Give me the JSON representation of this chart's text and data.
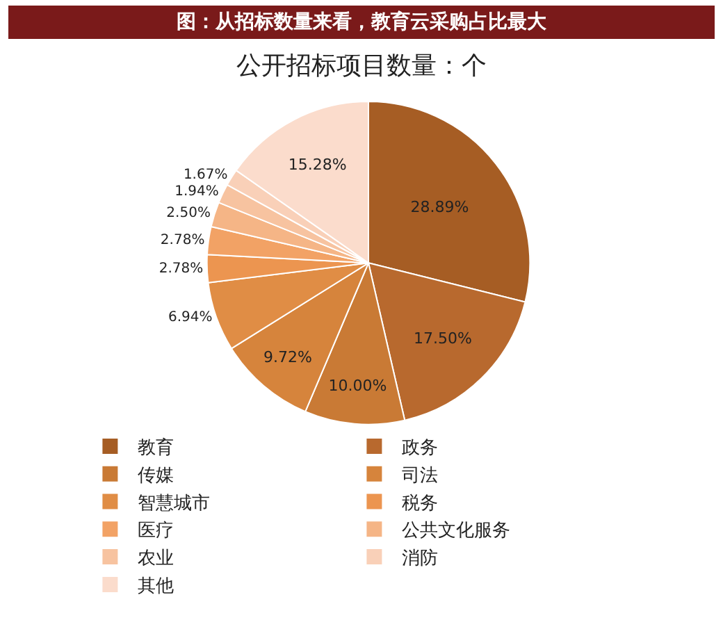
{
  "chart_data": {
    "type": "pie",
    "title": "图：从招标数量来看，教育云采购占比最大",
    "subtitle": "公开招标项目数量：个",
    "categories": [
      "教育",
      "政务",
      "传媒",
      "司法",
      "智慧城市",
      "税务",
      "医疗",
      "公共文化服务",
      "农业",
      "消防",
      "其他"
    ],
    "values": [
      28.89,
      17.5,
      10.0,
      9.72,
      6.94,
      2.78,
      2.78,
      2.5,
      1.94,
      1.67,
      15.28
    ],
    "value_labels": [
      "28.89%",
      "17.50%",
      "10.00%",
      "9.72%",
      "6.94%",
      "2.78%",
      "2.78%",
      "2.50%",
      "1.94%",
      "1.67%",
      "15.28%"
    ],
    "colors": [
      "#a65d24",
      "#b8692e",
      "#c97a35",
      "#d6843c",
      "#e08d45",
      "#ec9550",
      "#f2a265",
      "#f5b586",
      "#f7c3a0",
      "#f9d0b8",
      "#fbdccc"
    ],
    "legend": "bottom"
  }
}
